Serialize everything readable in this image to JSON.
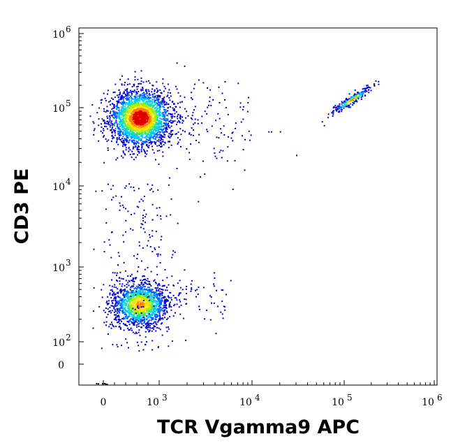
{
  "chart_data": {
    "type": "scatter",
    "title": "",
    "xlabel": "TCR Vgamma9 APC",
    "ylabel": "CD3 PE",
    "x_scale": "biexponential",
    "y_scale": "biexponential",
    "xlim": [
      -100,
      1000000
    ],
    "ylim": [
      -20,
      1000000
    ],
    "x_ticks": [
      {
        "value": 0,
        "label": "0",
        "exp": ""
      },
      {
        "value": 1000,
        "label": "10",
        "exp": "3"
      },
      {
        "value": 10000,
        "label": "10",
        "exp": "4"
      },
      {
        "value": 100000,
        "label": "10",
        "exp": "5"
      },
      {
        "value": 1000000,
        "label": "10",
        "exp": "6"
      }
    ],
    "y_ticks": [
      {
        "value": 0,
        "label": "0",
        "exp": ""
      },
      {
        "value": 100,
        "label": "10",
        "exp": "2"
      },
      {
        "value": 1000,
        "label": "10",
        "exp": "3"
      },
      {
        "value": 10000,
        "label": "10",
        "exp": "4"
      },
      {
        "value": 100000,
        "label": "10",
        "exp": "5"
      },
      {
        "value": 1000000,
        "label": "10",
        "exp": "6"
      }
    ],
    "grid": false,
    "legend": "none",
    "colormap": [
      "#0000cc",
      "#0060ff",
      "#00c8ff",
      "#20e0a0",
      "#a0f000",
      "#ffe000",
      "#ff8000",
      "#e00000"
    ],
    "populations": [
      {
        "x": 650,
        "y": 75000,
        "count": 2600,
        "density": 1.0
      },
      {
        "x": 650,
        "y": 320,
        "count": 1500,
        "density": 0.75
      },
      {
        "x": 120000,
        "y": 130000,
        "count": 220,
        "density": 0.65
      }
    ]
  }
}
